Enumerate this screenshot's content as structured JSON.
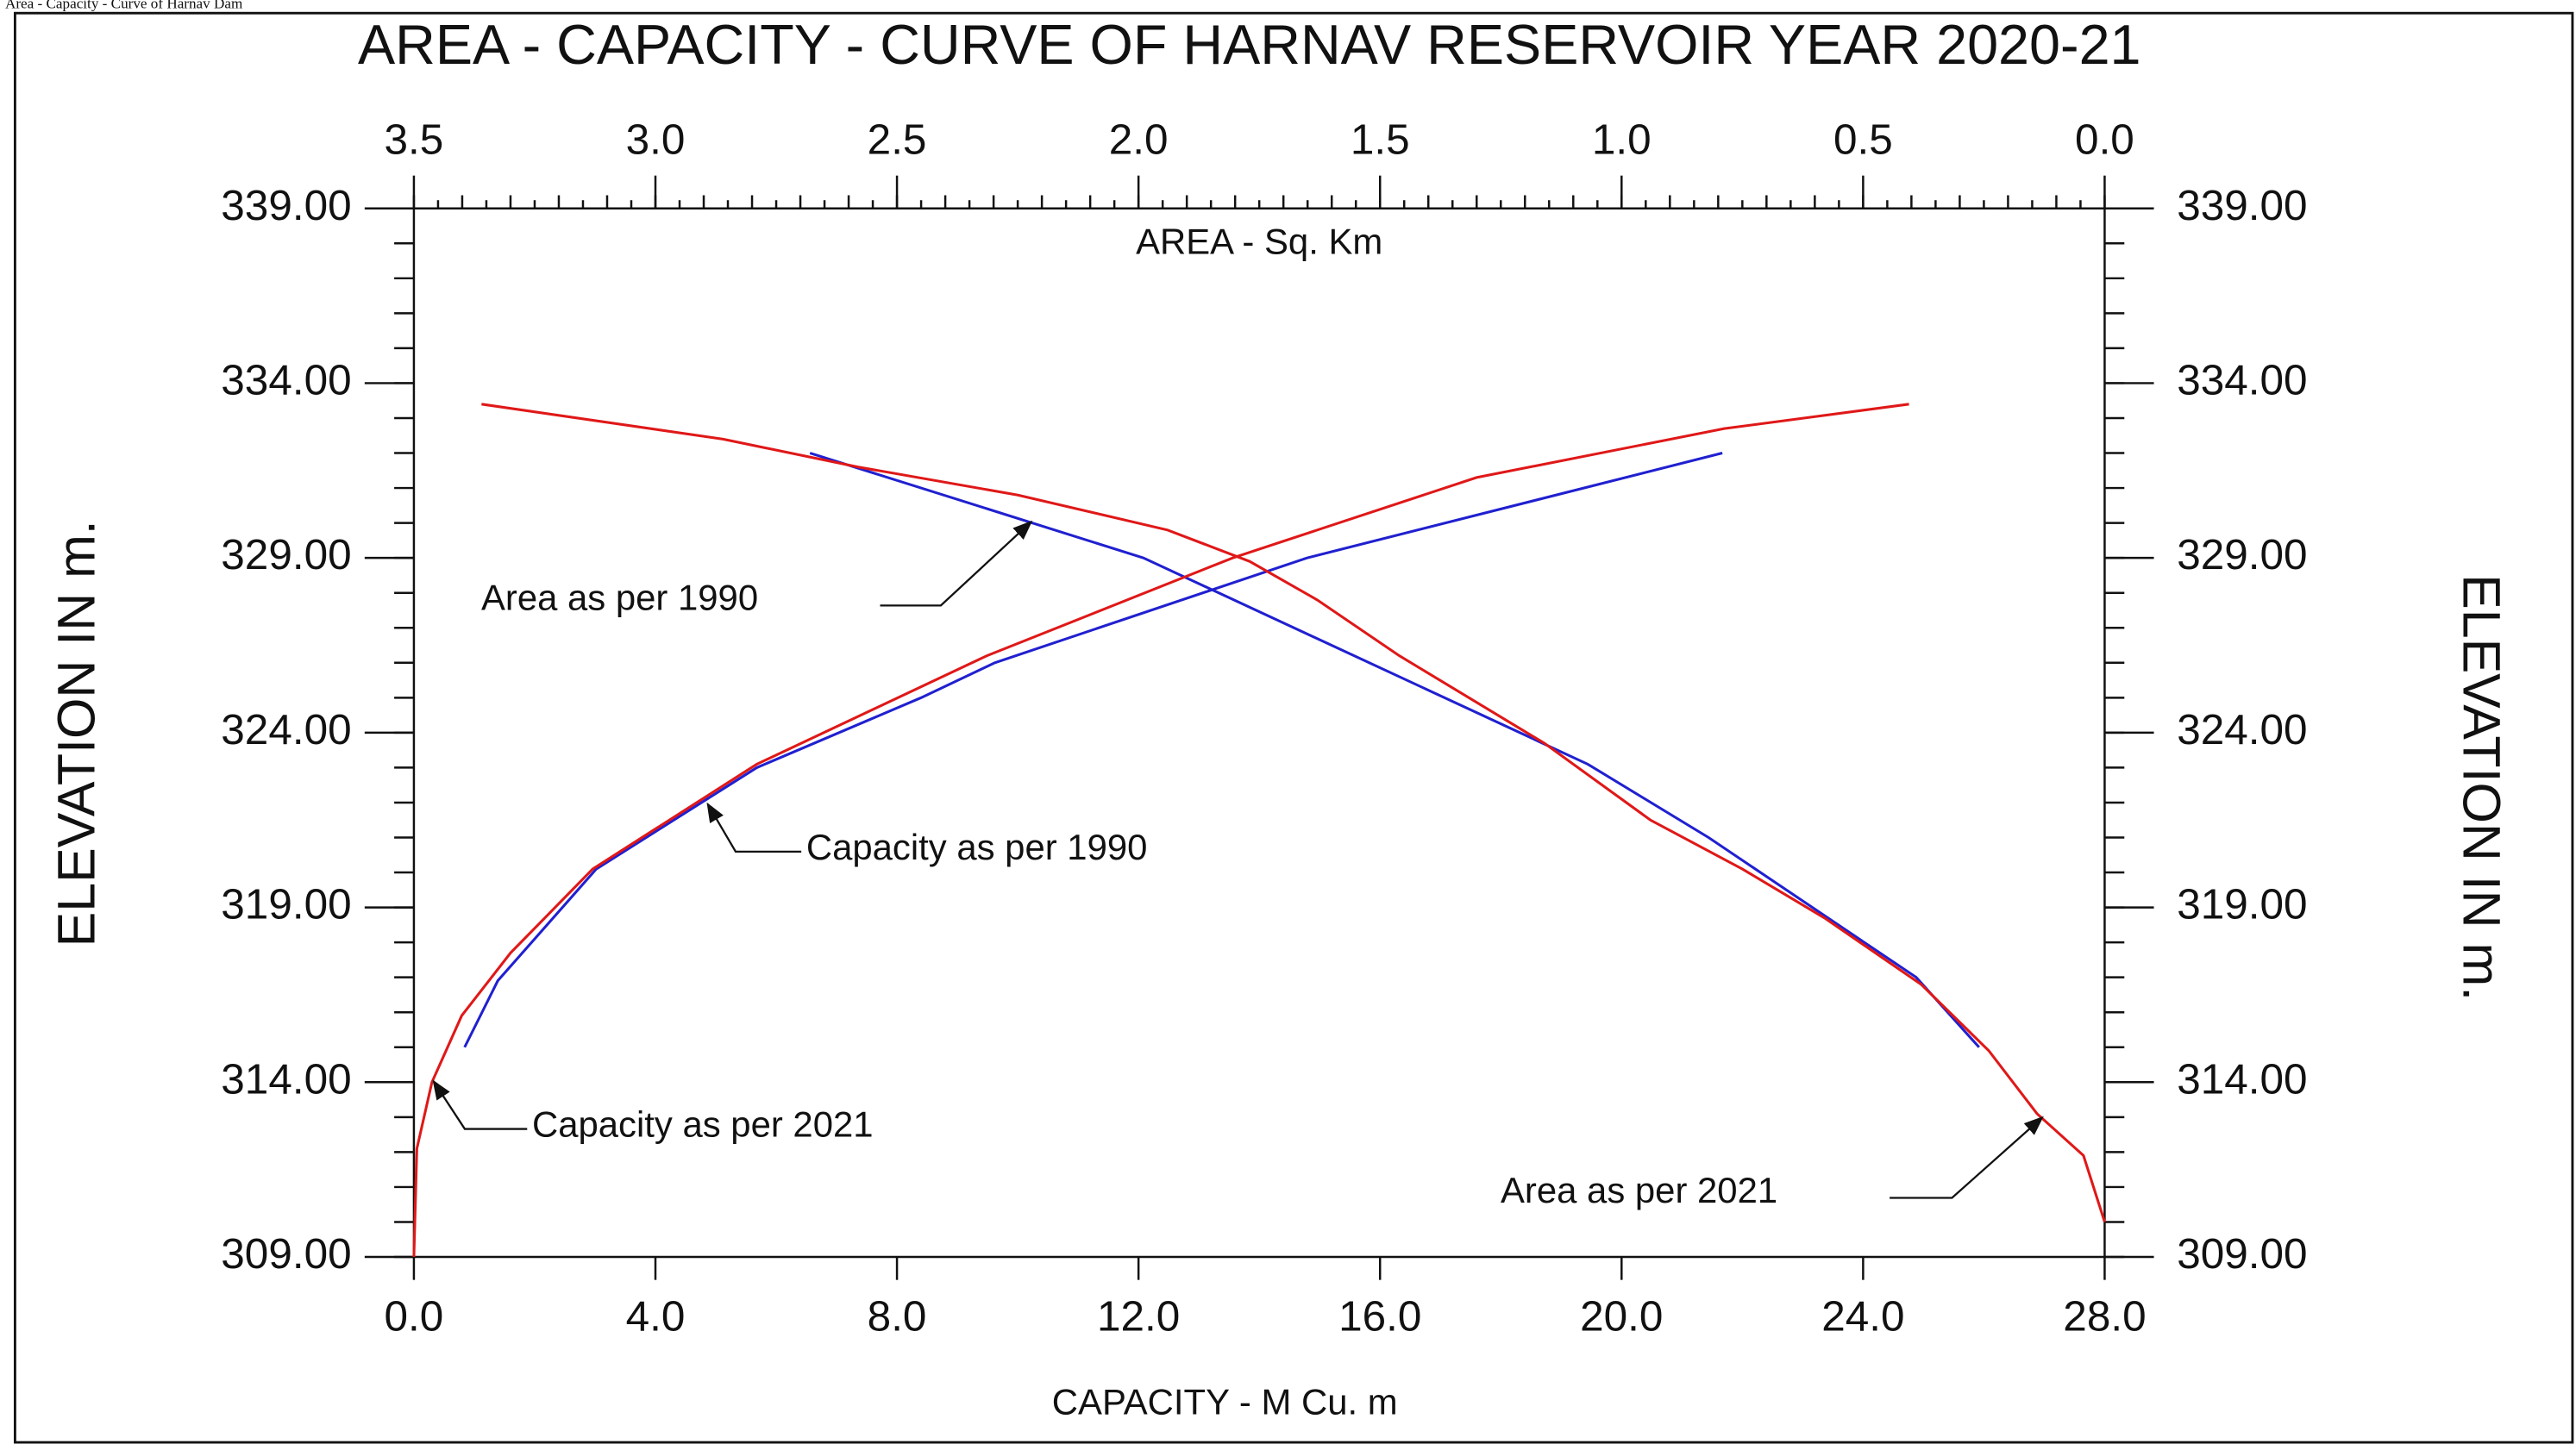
{
  "header": "Area - Capacity - Curve of Harnav Dam",
  "chart_data": {
    "type": "line",
    "title": "AREA - CAPACITY - CURVE OF HARNAV RESERVOIR YEAR 2020-21",
    "xlabel": "CAPACITY - M Cu. m",
    "x2label": "AREA - Sq. Km",
    "ylabel": "ELEVATION IN m.",
    "y2label": "ELEVATION IN m.",
    "xlim": [
      0,
      28
    ],
    "xticks": [
      {
        "value": 0,
        "label": "0.0"
      },
      {
        "value": 4,
        "label": "4.0"
      },
      {
        "value": 8,
        "label": "8.0"
      },
      {
        "value": 12,
        "label": "12.0"
      },
      {
        "value": 16,
        "label": "16.0"
      },
      {
        "value": 20,
        "label": "20.0"
      },
      {
        "value": 24,
        "label": "24.0"
      },
      {
        "value": 28,
        "label": "28.0"
      }
    ],
    "x2lim": [
      3.5,
      0
    ],
    "x2ticks": [
      3.5,
      {
        "value": 3,
        "label": "3.0"
      },
      2.5,
      {
        "value": 2,
        "label": "2.0"
      },
      1.5,
      {
        "value": 1,
        "label": "1.0"
      },
      0.5,
      {
        "value": 0,
        "label": "0.0"
      }
    ],
    "ylim": [
      309,
      339
    ],
    "yticks": [
      {
        "value": 309,
        "label": "309.00"
      },
      {
        "value": 314,
        "label": "314.00"
      },
      {
        "value": 319,
        "label": "319.00"
      },
      {
        "value": 324,
        "label": "324.00"
      },
      {
        "value": 329,
        "label": "329.00"
      },
      {
        "value": 334,
        "label": "334.00"
      },
      {
        "value": 339,
        "label": "339.00"
      }
    ],
    "y2lim": [
      309,
      339
    ],
    "y2ticks": [
      {
        "value": 309,
        "label": "309.00"
      },
      {
        "value": 314,
        "label": "314.00"
      },
      {
        "value": 319,
        "label": "319.00"
      },
      {
        "value": 324,
        "label": "324.00"
      },
      {
        "value": 329,
        "label": "329.00"
      },
      {
        "value": 334,
        "label": "334.00"
      },
      {
        "value": 339,
        "label": "339.00"
      }
    ],
    "series": [
      {
        "name": "Area as per 1990",
        "color": "#2020d0",
        "axis": "x2",
        "x": [
          2.68,
          1.99,
          1.07,
          0.82,
          0.39,
          0.26
        ],
        "y": [
          332.0,
          329.0,
          323.1,
          321.0,
          317.0,
          315.0
        ]
      },
      {
        "name": "Capacity as per 1990",
        "color": "#2020d0",
        "x": [
          0.84,
          1.39,
          3.02,
          5.68,
          8.4,
          9.62,
          14.79,
          21.67
        ],
        "y": [
          315.0,
          316.9,
          320.1,
          323.0,
          325.0,
          326.0,
          329.0,
          332.0
        ]
      },
      {
        "name": "Capacity as per 2021",
        "color": "#e01818",
        "x": [
          0,
          0.05,
          0.3,
          0.79,
          1.6,
          2.96,
          5.68,
          9.49,
          13.56,
          17.6,
          21.7,
          24.76
        ],
        "y": [
          309.0,
          312.1,
          314.0,
          315.9,
          317.7,
          320.1,
          323.1,
          326.2,
          329.0,
          331.3,
          332.7,
          333.4
        ]
      },
      {
        "name": "Area as per 2021",
        "color": "#e01818",
        "axis": "x2",
        "x": [
          3.36,
          2.86,
          2.58,
          2.25,
          1.94,
          1.77,
          1.63,
          1.46,
          1.4,
          1.16,
          0.94,
          0.75,
          0.58,
          0.38,
          0.24,
          0.14,
          0.044,
          0
        ],
        "y": [
          333.4,
          332.4,
          331.6,
          330.8,
          329.8,
          328.9,
          327.8,
          326.2,
          325.7,
          323.7,
          321.5,
          320.1,
          318.7,
          316.8,
          314.9,
          313.1,
          311.9,
          310.0
        ]
      }
    ]
  }
}
